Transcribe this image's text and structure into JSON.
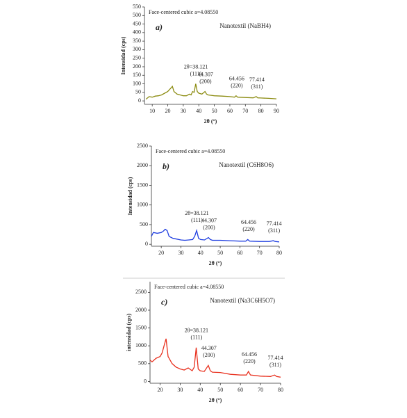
{
  "chart_data": [
    {
      "type": "line",
      "panel_label": "a)",
      "annotation": "Face-centered cubic a=4.08550",
      "xlabel": "2θ (°)",
      "ylabel": "Intensidad (cps)",
      "x": [
        6,
        8,
        10,
        12,
        14,
        16,
        18,
        20,
        21,
        22,
        23,
        24,
        26,
        28,
        30,
        32,
        34,
        35,
        36,
        37,
        38,
        39,
        40,
        42,
        44,
        45,
        46,
        50,
        55,
        60,
        63,
        64,
        65,
        70,
        75,
        77,
        78,
        80,
        85,
        90
      ],
      "series": [
        {
          "name": "Nanotextil (NaBH4)",
          "color": "#8c8c12",
          "values": [
            10,
            25,
            22,
            28,
            30,
            35,
            45,
            55,
            65,
            75,
            85,
            55,
            40,
            35,
            30,
            30,
            40,
            35,
            55,
            50,
            100,
            55,
            45,
            40,
            55,
            40,
            35,
            30,
            28,
            25,
            22,
            30,
            22,
            20,
            18,
            25,
            18,
            17,
            15,
            12
          ]
        }
      ],
      "xlim": [
        5,
        90
      ],
      "xticks": [
        10,
        20,
        30,
        40,
        50,
        60,
        70,
        80,
        90
      ],
      "ylim": [
        -20,
        550
      ],
      "yticks": [
        0,
        50,
        100,
        150,
        200,
        250,
        300,
        350,
        400,
        450,
        500,
        550
      ],
      "annotations": [
        {
          "text": "2θ=38.121",
          "hkl": "(111)",
          "x": 38.121
        },
        {
          "text": "44.307",
          "hkl": "(200)",
          "x": 44.307
        },
        {
          "text": "64.456",
          "hkl": "(220)",
          "x": 64.456
        },
        {
          "text": "77.414",
          "hkl": "(311)",
          "x": 77.414
        }
      ]
    },
    {
      "type": "line",
      "panel_label": "b)",
      "annotation": "Face-centered cubic a=4.08550",
      "xlabel": "2θ (°)",
      "ylabel": "Intensidad (cps)",
      "x": [
        15,
        16,
        18,
        20,
        21,
        22,
        23,
        24,
        26,
        28,
        30,
        32,
        34,
        36,
        37,
        38,
        39,
        40,
        42,
        44,
        45,
        46,
        50,
        55,
        60,
        63,
        64,
        65,
        70,
        75,
        77,
        78,
        80
      ],
      "series": [
        {
          "name": "Nanotextil (C6H8O6)",
          "color": "#1f3ee0",
          "values": [
            200,
            300,
            280,
            300,
            330,
            380,
            350,
            200,
            150,
            130,
            110,
            100,
            110,
            120,
            200,
            350,
            150,
            120,
            110,
            170,
            120,
            100,
            100,
            90,
            80,
            80,
            120,
            80,
            70,
            70,
            90,
            70,
            60
          ]
        }
      ],
      "xlim": [
        15,
        80
      ],
      "xticks": [
        20,
        30,
        40,
        50,
        60,
        70,
        80
      ],
      "ylim": [
        -50,
        2500
      ],
      "yticks": [
        0,
        500,
        1000,
        1500,
        2000,
        2500
      ],
      "annotations": [
        {
          "text": "2θ=38.121",
          "hkl": "(111)",
          "x": 38.121
        },
        {
          "text": "44.307",
          "hkl": "(200)",
          "x": 44.307
        },
        {
          "text": "64.456",
          "hkl": "(220)",
          "x": 64.456
        },
        {
          "text": "77.414",
          "hkl": "(311)",
          "x": 77.414
        }
      ]
    },
    {
      "type": "line",
      "panel_label": "c)",
      "annotation": "Face-centered cubic a=4.08550",
      "xlabel": "2θ (°)",
      "ylabel": "intensidad (cps)",
      "x": [
        15,
        16,
        18,
        20,
        21,
        22,
        23,
        24,
        26,
        28,
        30,
        32,
        34,
        36,
        37,
        38,
        39,
        40,
        42,
        44,
        45,
        46,
        50,
        55,
        60,
        63,
        64,
        65,
        70,
        75,
        77,
        78,
        80
      ],
      "series": [
        {
          "name": "Nanotextil (Na3C6H5O7)",
          "color": "#e8311f",
          "values": [
            600,
            550,
            650,
            700,
            800,
            1000,
            1200,
            700,
            500,
            400,
            350,
            320,
            380,
            300,
            400,
            950,
            350,
            300,
            280,
            450,
            300,
            260,
            250,
            200,
            180,
            180,
            280,
            180,
            150,
            140,
            180,
            140,
            120
          ]
        }
      ],
      "xlim": [
        15,
        80
      ],
      "xticks": [
        20,
        30,
        40,
        50,
        60,
        70,
        80
      ],
      "ylim": [
        -50,
        2800
      ],
      "yticks": [
        0,
        500,
        1000,
        1500,
        2000,
        2500
      ],
      "annotations": [
        {
          "text": "2θ=38.121",
          "hkl": "(111)",
          "x": 38.121
        },
        {
          "text": "44.307",
          "hkl": "(200)",
          "x": 44.307
        },
        {
          "text": "64.456",
          "hkl": "(220)",
          "x": 64.456
        },
        {
          "text": "77.414",
          "hkl": "(311)",
          "x": 77.414
        }
      ]
    }
  ]
}
